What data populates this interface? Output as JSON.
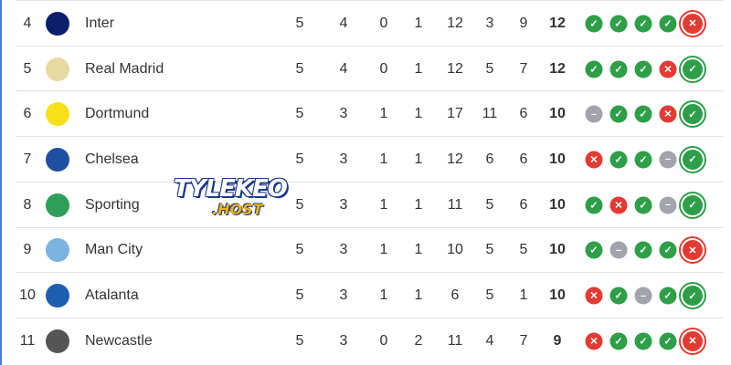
{
  "standings": [
    {
      "rank": "4",
      "team": "Inter",
      "logo": "inter-logo",
      "logo_color": "#0d1e6b",
      "p": "5",
      "w": "4",
      "d": "0",
      "l": "1",
      "gf": "12",
      "ga": "3",
      "gd": "9",
      "pts": "12",
      "form": [
        "W",
        "W",
        "W",
        "W",
        "L"
      ]
    },
    {
      "rank": "5",
      "team": "Real Madrid",
      "logo": "real-madrid-logo",
      "logo_color": "#e8d9a0",
      "p": "5",
      "w": "4",
      "d": "0",
      "l": "1",
      "gf": "12",
      "ga": "5",
      "gd": "7",
      "pts": "12",
      "form": [
        "W",
        "W",
        "W",
        "L",
        "W"
      ]
    },
    {
      "rank": "6",
      "team": "Dortmund",
      "logo": "dortmund-logo",
      "logo_color": "#f7e017",
      "p": "5",
      "w": "3",
      "d": "1",
      "l": "1",
      "gf": "17",
      "ga": "11",
      "gd": "6",
      "pts": "10",
      "form": [
        "D",
        "W",
        "W",
        "L",
        "W"
      ]
    },
    {
      "rank": "7",
      "team": "Chelsea",
      "logo": "chelsea-logo",
      "logo_color": "#1f4fa0",
      "p": "5",
      "w": "3",
      "d": "1",
      "l": "1",
      "gf": "12",
      "ga": "6",
      "gd": "6",
      "pts": "10",
      "form": [
        "L",
        "W",
        "W",
        "D",
        "W"
      ]
    },
    {
      "rank": "8",
      "team": "Sporting",
      "logo": "sporting-logo",
      "logo_color": "#2e9e58",
      "p": "5",
      "w": "3",
      "d": "1",
      "l": "1",
      "gf": "11",
      "ga": "5",
      "gd": "6",
      "pts": "10",
      "form": [
        "W",
        "L",
        "W",
        "D",
        "W"
      ]
    },
    {
      "rank": "9",
      "team": "Man City",
      "logo": "man-city-logo",
      "logo_color": "#7bb4e0",
      "p": "5",
      "w": "3",
      "d": "1",
      "l": "1",
      "gf": "10",
      "ga": "5",
      "gd": "5",
      "pts": "10",
      "form": [
        "W",
        "D",
        "W",
        "W",
        "L"
      ]
    },
    {
      "rank": "10",
      "team": "Atalanta",
      "logo": "atalanta-logo",
      "logo_color": "#1d5fae",
      "p": "5",
      "w": "3",
      "d": "1",
      "l": "1",
      "gf": "6",
      "ga": "5",
      "gd": "1",
      "pts": "10",
      "form": [
        "L",
        "W",
        "D",
        "W",
        "W"
      ]
    },
    {
      "rank": "11",
      "team": "Newcastle",
      "logo": "newcastle-logo",
      "logo_color": "#555555",
      "p": "5",
      "w": "3",
      "d": "0",
      "l": "2",
      "gf": "11",
      "ga": "4",
      "gd": "7",
      "pts": "9",
      "form": [
        "L",
        "W",
        "W",
        "W",
        "L"
      ]
    }
  ],
  "watermark": {
    "line1": "TYLEKEO",
    "line2": ".HOST"
  },
  "colors": {
    "win": "#2e9e48",
    "loss": "#e23b33",
    "draw": "#a2a4ad",
    "accent": "#4a7fd6"
  }
}
